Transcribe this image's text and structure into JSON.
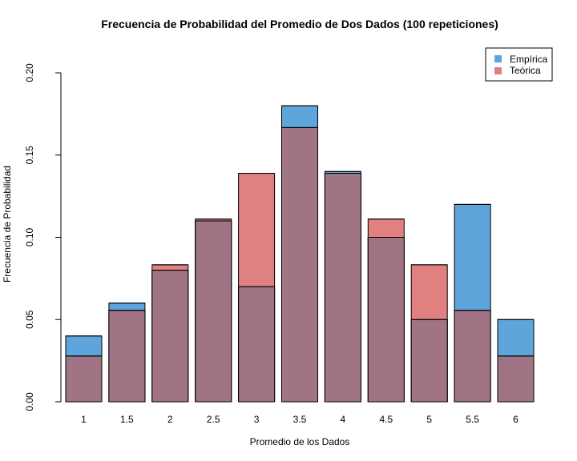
{
  "chart_data": {
    "type": "bar",
    "title": "Frecuencia de Probabilidad del Promedio de Dos Dados (100 repeticiones)",
    "xlabel": "Promedio de los Dados",
    "ylabel": "Frecuencia de Probabilidad",
    "categories": [
      "1",
      "1.5",
      "2",
      "2.5",
      "3",
      "3.5",
      "4",
      "4.5",
      "5",
      "5.5",
      "6"
    ],
    "ylim": [
      0,
      0.2
    ],
    "yticks": [
      "0.00",
      "0.05",
      "0.10",
      "0.15",
      "0.20"
    ],
    "series": [
      {
        "name": "Empírica",
        "color": "#5DA5DA",
        "values": [
          0.04,
          0.06,
          0.08,
          0.11,
          0.07,
          0.18,
          0.14,
          0.1,
          0.05,
          0.12,
          0.05
        ]
      },
      {
        "name": "Teórica",
        "color": "#E08080",
        "values": [
          0.0278,
          0.0556,
          0.0833,
          0.1111,
          0.1389,
          0.1667,
          0.1389,
          0.1111,
          0.0833,
          0.0556,
          0.0278
        ]
      }
    ],
    "overlap_color": "#A07484",
    "legend_position": "top-right",
    "grid": false
  }
}
